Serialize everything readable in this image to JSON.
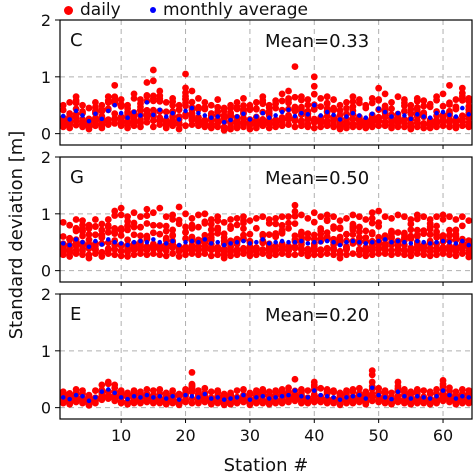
{
  "chart_data": {
    "type": "scatter",
    "xlabel": "Station #",
    "ylabel": "Standard deviation [m]",
    "xlim": [
      0.5,
      64.5
    ],
    "ylim": [
      -0.2,
      2.0
    ],
    "x_ticks": [
      10,
      20,
      30,
      40,
      50,
      60
    ],
    "y_ticks": [
      0,
      1,
      2
    ],
    "grid": true,
    "legend": [
      {
        "name": "daily",
        "color": "#ff0000"
      },
      {
        "name": "monthly average",
        "color": "#0000ff"
      }
    ],
    "panels": [
      {
        "label": "C",
        "mean_text": "Mean=0.33",
        "monthly_average": [
          0.31,
          0.25,
          0.4,
          0.32,
          0.22,
          0.35,
          0.26,
          0.4,
          0.5,
          0.36,
          0.28,
          0.38,
          0.32,
          0.55,
          0.33,
          0.42,
          0.3,
          0.36,
          0.25,
          0.4,
          0.45,
          0.36,
          0.32,
          0.28,
          0.3,
          0.2,
          0.24,
          0.3,
          0.35,
          0.25,
          0.3,
          0.36,
          0.28,
          0.32,
          0.38,
          0.42,
          0.31,
          0.36,
          0.34,
          0.5,
          0.32,
          0.38,
          0.33,
          0.25,
          0.3,
          0.36,
          0.32,
          0.28,
          0.35,
          0.44,
          0.38,
          0.3,
          0.36,
          0.32,
          0.26,
          0.34,
          0.3,
          0.28,
          0.36,
          0.38,
          0.33,
          0.3,
          0.45,
          0.34
        ],
        "daily_max": [
          0.5,
          0.55,
          0.65,
          0.5,
          0.45,
          0.55,
          0.5,
          0.65,
          0.85,
          0.6,
          0.5,
          0.7,
          0.6,
          0.9,
          1.12,
          0.75,
          0.55,
          0.62,
          0.5,
          1.05,
          0.75,
          0.62,
          0.55,
          0.5,
          0.6,
          0.45,
          0.5,
          0.55,
          0.62,
          0.5,
          0.55,
          0.65,
          0.5,
          0.58,
          0.7,
          0.75,
          1.18,
          0.65,
          0.6,
          1.0,
          0.62,
          0.65,
          0.6,
          0.5,
          0.55,
          0.65,
          0.6,
          0.5,
          0.62,
          0.8,
          0.7,
          0.55,
          0.65,
          0.6,
          0.5,
          0.62,
          0.58,
          0.52,
          0.65,
          0.7,
          0.85,
          0.6,
          0.8,
          0.62
        ],
        "daily_min": [
          0.12,
          0.1,
          0.15,
          0.12,
          0.08,
          0.14,
          0.1,
          0.16,
          0.18,
          0.14,
          0.1,
          0.14,
          0.12,
          0.2,
          0.12,
          0.16,
          0.1,
          0.14,
          0.08,
          0.14,
          0.16,
          0.14,
          0.12,
          0.1,
          0.12,
          0.06,
          0.08,
          0.1,
          0.12,
          0.08,
          0.1,
          0.14,
          0.1,
          0.12,
          0.14,
          0.16,
          0.12,
          0.14,
          0.12,
          0.1,
          0.12,
          0.14,
          0.12,
          0.08,
          0.1,
          0.12,
          0.12,
          0.1,
          0.12,
          0.14,
          0.14,
          0.1,
          0.12,
          0.12,
          0.08,
          0.12,
          0.1,
          0.1,
          0.12,
          0.14,
          0.12,
          0.1,
          0.14,
          0.12
        ]
      },
      {
        "label": "G",
        "mean_text": "Mean=0.50",
        "monthly_average": [
          0.48,
          0.45,
          0.55,
          0.5,
          0.42,
          0.52,
          0.46,
          0.55,
          0.5,
          0.48,
          0.45,
          0.5,
          0.52,
          0.5,
          0.55,
          0.5,
          0.48,
          0.52,
          0.45,
          0.5,
          0.52,
          0.5,
          0.55,
          0.48,
          0.5,
          0.45,
          0.48,
          0.5,
          0.52,
          0.48,
          0.5,
          0.55,
          0.48,
          0.5,
          0.52,
          0.5,
          0.5,
          0.52,
          0.48,
          0.5,
          0.5,
          0.52,
          0.5,
          0.45,
          0.5,
          0.52,
          0.5,
          0.48,
          0.5,
          0.52,
          0.55,
          0.5,
          0.52,
          0.5,
          0.48,
          0.52,
          0.5,
          0.48,
          0.5,
          0.52,
          0.5,
          0.48,
          0.52,
          0.45
        ],
        "daily_max": [
          0.85,
          0.8,
          0.9,
          0.88,
          0.8,
          0.9,
          0.82,
          0.9,
          1.05,
          1.1,
          0.95,
          1.02,
          0.95,
          1.08,
          1.02,
          1.1,
          0.95,
          0.98,
          1.12,
          1.0,
          0.92,
          0.98,
          1.0,
          0.9,
          0.95,
          0.85,
          0.9,
          0.92,
          0.95,
          0.88,
          0.92,
          0.95,
          0.9,
          0.92,
          0.95,
          0.95,
          1.15,
          0.98,
          0.92,
          1.02,
          0.95,
          0.98,
          0.95,
          0.88,
          0.92,
          0.98,
          0.95,
          0.9,
          1.02,
          1.05,
          0.95,
          0.92,
          0.98,
          0.95,
          0.9,
          0.98,
          0.95,
          0.9,
          0.95,
          0.98,
          0.95,
          0.9,
          0.95,
          0.88
        ],
        "daily_min": [
          0.28,
          0.25,
          0.3,
          0.28,
          0.22,
          0.3,
          0.25,
          0.3,
          0.28,
          0.26,
          0.25,
          0.28,
          0.3,
          0.28,
          0.3,
          0.28,
          0.26,
          0.3,
          0.25,
          0.28,
          0.3,
          0.28,
          0.3,
          0.26,
          0.28,
          0.22,
          0.26,
          0.28,
          0.3,
          0.26,
          0.28,
          0.3,
          0.26,
          0.28,
          0.3,
          0.28,
          0.28,
          0.3,
          0.26,
          0.28,
          0.28,
          0.3,
          0.28,
          0.22,
          0.28,
          0.3,
          0.28,
          0.26,
          0.28,
          0.3,
          0.3,
          0.28,
          0.3,
          0.28,
          0.26,
          0.3,
          0.28,
          0.26,
          0.28,
          0.3,
          0.28,
          0.26,
          0.3,
          0.24
        ]
      },
      {
        "label": "E",
        "mean_text": "Mean=0.20",
        "monthly_average": [
          0.18,
          0.15,
          0.22,
          0.2,
          0.12,
          0.18,
          0.28,
          0.32,
          0.26,
          0.18,
          0.15,
          0.2,
          0.18,
          0.22,
          0.18,
          0.2,
          0.16,
          0.2,
          0.14,
          0.22,
          0.2,
          0.18,
          0.24,
          0.16,
          0.18,
          0.14,
          0.16,
          0.18,
          0.22,
          0.14,
          0.18,
          0.2,
          0.16,
          0.18,
          0.2,
          0.22,
          0.3,
          0.2,
          0.18,
          0.3,
          0.22,
          0.2,
          0.18,
          0.14,
          0.18,
          0.2,
          0.22,
          0.16,
          0.35,
          0.22,
          0.18,
          0.15,
          0.28,
          0.2,
          0.16,
          0.2,
          0.18,
          0.16,
          0.2,
          0.3,
          0.22,
          0.16,
          0.2,
          0.18
        ],
        "daily_max": [
          0.28,
          0.25,
          0.32,
          0.3,
          0.22,
          0.3,
          0.4,
          0.45,
          0.4,
          0.3,
          0.26,
          0.3,
          0.28,
          0.32,
          0.3,
          0.32,
          0.26,
          0.3,
          0.24,
          0.32,
          0.62,
          0.3,
          0.34,
          0.28,
          0.3,
          0.24,
          0.26,
          0.3,
          0.32,
          0.26,
          0.3,
          0.32,
          0.28,
          0.3,
          0.32,
          0.35,
          0.5,
          0.32,
          0.3,
          0.45,
          0.34,
          0.32,
          0.3,
          0.26,
          0.3,
          0.32,
          0.34,
          0.28,
          0.65,
          0.34,
          0.3,
          0.26,
          0.45,
          0.32,
          0.28,
          0.32,
          0.3,
          0.28,
          0.32,
          0.48,
          0.35,
          0.28,
          0.32,
          0.3
        ],
        "daily_min": [
          0.08,
          0.06,
          0.1,
          0.08,
          0.04,
          0.08,
          0.14,
          0.16,
          0.12,
          0.08,
          0.06,
          0.08,
          0.08,
          0.1,
          0.08,
          0.08,
          0.06,
          0.08,
          0.05,
          0.1,
          0.08,
          0.08,
          0.1,
          0.06,
          0.08,
          0.05,
          0.06,
          0.08,
          0.1,
          0.05,
          0.08,
          0.08,
          0.06,
          0.08,
          0.08,
          0.1,
          0.12,
          0.08,
          0.08,
          0.1,
          0.1,
          0.08,
          0.08,
          0.05,
          0.08,
          0.08,
          0.1,
          0.06,
          0.12,
          0.1,
          0.08,
          0.06,
          0.1,
          0.08,
          0.06,
          0.08,
          0.08,
          0.06,
          0.08,
          0.12,
          0.1,
          0.06,
          0.08,
          0.08
        ]
      }
    ]
  }
}
